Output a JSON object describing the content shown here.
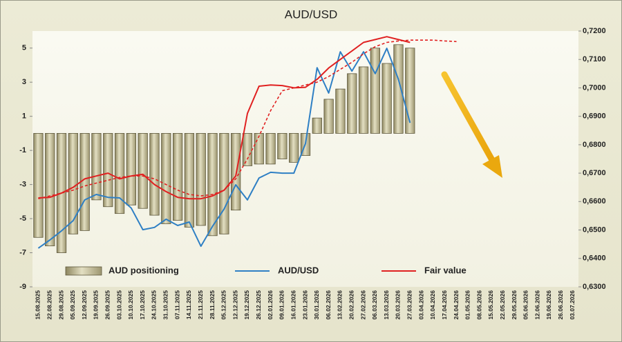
{
  "chart_data": {
    "type": "bar-line",
    "title": "AUD/USD",
    "categories": [
      "15.08.2025",
      "22.08.2025",
      "29.08.2025",
      "05.09.2025",
      "12.09.2025",
      "19.09.2025",
      "26.09.2025",
      "03.10.2025",
      "10.10.2025",
      "17.10.2025",
      "24.10.2025",
      "31.10.2025",
      "07.11.2025",
      "14.11.2025",
      "21.11.2025",
      "28.11.2025",
      "05.12.2025",
      "12.12.2025",
      "19.12.2025",
      "26.12.2025",
      "02.01.2026",
      "09.01.2026",
      "16.01.2026",
      "23.01.2026",
      "30.01.2026",
      "06.02.2026",
      "13.02.2026",
      "20.02.2026",
      "27.02.2026",
      "06.03.2026",
      "13.03.2026",
      "20.03.2026",
      "27.03.2026",
      "03.04.2026",
      "10.04.2026",
      "17.04.2026",
      "24.04.2026",
      "01.05.2026",
      "08.05.2026",
      "15.05.2026",
      "22.05.2026",
      "29.05.2026",
      "05.06.2026",
      "12.06.2026",
      "19.06.2026",
      "26.06.2026",
      "03.07.2026"
    ],
    "series": [
      {
        "name": "AUD positioning",
        "kind": "bar",
        "color": "#c9c39c",
        "values": [
          -6.1,
          -6.6,
          -7.0,
          -5.9,
          -5.7,
          -3.9,
          -4.3,
          -4.7,
          -4.2,
          -4.4,
          -4.8,
          -5.3,
          -5.1,
          -5.5,
          -5.4,
          -6.0,
          -5.9,
          -4.5,
          -1.9,
          -1.8,
          -1.8,
          -1.5,
          -1.7,
          -1.3,
          0.9,
          2.0,
          2.6,
          3.5,
          3.9,
          5.0,
          4.1,
          5.2,
          5.0,
          null,
          null,
          null,
          null,
          null,
          null,
          null,
          null,
          null,
          null,
          null,
          null,
          null,
          null
        ]
      },
      {
        "name": "AUD/USD",
        "kind": "line",
        "axis": "y2",
        "color": "#2e7fc4",
        "values": [
          0.6436,
          0.6465,
          0.6497,
          0.6533,
          0.6606,
          0.6625,
          0.6615,
          0.6613,
          0.6577,
          0.6501,
          0.6509,
          0.6538,
          0.6516,
          0.6528,
          0.6443,
          0.6513,
          0.6574,
          0.6659,
          0.6606,
          0.6683,
          0.6703,
          0.67,
          0.67,
          0.6804,
          0.7071,
          0.6982,
          0.7127,
          0.7059,
          0.7127,
          0.705,
          0.7139,
          0.703,
          0.6877,
          null,
          null,
          null,
          null,
          null,
          null,
          null,
          null,
          null,
          null,
          null,
          null,
          null,
          null
        ]
      },
      {
        "name": "Fair value",
        "kind": "line",
        "axis": "y2",
        "color": "#e02020",
        "values": [
          0.6613,
          0.6615,
          0.663,
          0.665,
          0.668,
          0.669,
          0.67,
          0.668,
          0.669,
          0.6696,
          0.666,
          0.6635,
          0.6615,
          0.661,
          0.661,
          0.662,
          0.664,
          0.669,
          0.691,
          0.7006,
          0.701,
          0.7008,
          0.7,
          0.7002,
          0.703,
          0.707,
          0.71,
          0.713,
          0.716,
          0.717,
          0.718,
          0.717,
          0.716,
          null,
          null,
          null,
          null,
          null,
          null,
          null,
          null,
          null,
          null,
          null,
          null,
          null,
          null
        ]
      },
      {
        "kind": "line",
        "axis": "y2",
        "dashed": true,
        "color": "#e02020",
        "values": [
          0.661,
          0.662,
          0.663,
          0.664,
          0.6655,
          0.6665,
          0.6675,
          0.6685,
          0.669,
          0.669,
          0.668,
          0.666,
          0.664,
          0.6625,
          0.662,
          0.6625,
          0.664,
          0.668,
          0.675,
          0.683,
          0.692,
          0.699,
          0.7,
          0.701,
          0.702,
          0.704,
          0.7065,
          0.709,
          0.712,
          0.7145,
          0.716,
          0.7165,
          0.7168,
          0.7168,
          0.7168,
          0.7165,
          0.7163,
          null,
          null,
          null,
          null,
          null,
          null,
          null,
          null,
          null,
          null
        ]
      }
    ],
    "ylim": [
      -9,
      6
    ],
    "yticks": [
      -9,
      -7,
      -5,
      -3,
      -1,
      1,
      3,
      5
    ],
    "y2lim": [
      0.63,
      0.72
    ],
    "y2ticks": [
      {
        "value": 0.63,
        "label": "0,6300"
      },
      {
        "value": 0.64,
        "label": "0,6400"
      },
      {
        "value": 0.65,
        "label": "0,6500"
      },
      {
        "value": 0.66,
        "label": "0,6600"
      },
      {
        "value": 0.67,
        "label": "0,6700"
      },
      {
        "value": 0.68,
        "label": "0,6800"
      },
      {
        "value": 0.69,
        "label": "0,6900"
      },
      {
        "value": 0.7,
        "label": "0,7000"
      },
      {
        "value": 0.71,
        "label": "0,7100"
      },
      {
        "value": 0.72,
        "label": "0,7200"
      }
    ]
  }
}
